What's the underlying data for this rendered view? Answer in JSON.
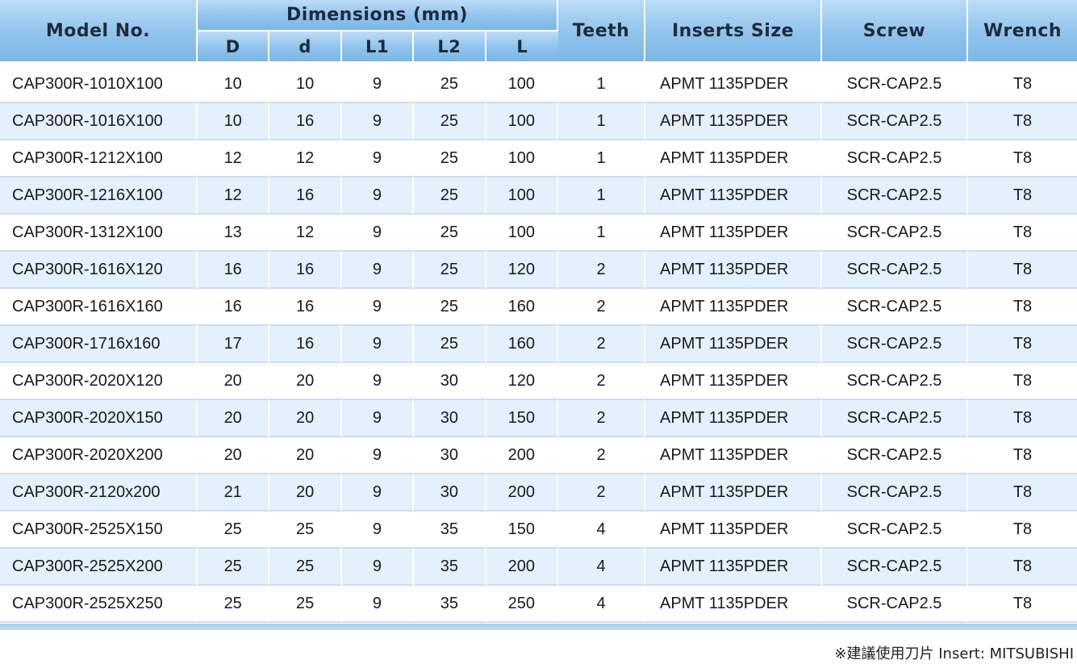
{
  "header": {
    "model": "Model No.",
    "dimensions": "Dimensions (mm)",
    "dims": [
      "D",
      "d",
      "L1",
      "L2",
      "L"
    ],
    "teeth": "Teeth",
    "inserts": "Inserts Size",
    "screw": "Screw",
    "wrench": "Wrench"
  },
  "rows": [
    {
      "model": "CAP300R-1010X100",
      "D": "10",
      "d": "10",
      "L1": "9",
      "L2": "25",
      "L": "100",
      "teeth": "1",
      "insert": "APMT 1135PDER",
      "screw": "SCR-CAP2.5",
      "wrench": "T8"
    },
    {
      "model": "CAP300R-1016X100",
      "D": "10",
      "d": "16",
      "L1": "9",
      "L2": "25",
      "L": "100",
      "teeth": "1",
      "insert": "APMT 1135PDER",
      "screw": "SCR-CAP2.5",
      "wrench": "T8"
    },
    {
      "model": "CAP300R-1212X100",
      "D": "12",
      "d": "12",
      "L1": "9",
      "L2": "25",
      "L": "100",
      "teeth": "1",
      "insert": "APMT 1135PDER",
      "screw": "SCR-CAP2.5",
      "wrench": "T8"
    },
    {
      "model": "CAP300R-1216X100",
      "D": "12",
      "d": "16",
      "L1": "9",
      "L2": "25",
      "L": "100",
      "teeth": "1",
      "insert": "APMT 1135PDER",
      "screw": "SCR-CAP2.5",
      "wrench": "T8"
    },
    {
      "model": "CAP300R-1312X100",
      "D": "13",
      "d": "12",
      "L1": "9",
      "L2": "25",
      "L": "100",
      "teeth": "1",
      "insert": "APMT 1135PDER",
      "screw": "SCR-CAP2.5",
      "wrench": "T8"
    },
    {
      "model": "CAP300R-1616X120",
      "D": "16",
      "d": "16",
      "L1": "9",
      "L2": "25",
      "L": "120",
      "teeth": "2",
      "insert": "APMT 1135PDER",
      "screw": "SCR-CAP2.5",
      "wrench": "T8"
    },
    {
      "model": "CAP300R-1616X160",
      "D": "16",
      "d": "16",
      "L1": "9",
      "L2": "25",
      "L": "160",
      "teeth": "2",
      "insert": "APMT 1135PDER",
      "screw": "SCR-CAP2.5",
      "wrench": "T8"
    },
    {
      "model": "CAP300R-1716x160",
      "D": "17",
      "d": "16",
      "L1": "9",
      "L2": "25",
      "L": "160",
      "teeth": "2",
      "insert": "APMT 1135PDER",
      "screw": "SCR-CAP2.5",
      "wrench": "T8"
    },
    {
      "model": "CAP300R-2020X120",
      "D": "20",
      "d": "20",
      "L1": "9",
      "L2": "30",
      "L": "120",
      "teeth": "2",
      "insert": "APMT 1135PDER",
      "screw": "SCR-CAP2.5",
      "wrench": "T8"
    },
    {
      "model": "CAP300R-2020X150",
      "D": "20",
      "d": "20",
      "L1": "9",
      "L2": "30",
      "L": "150",
      "teeth": "2",
      "insert": "APMT 1135PDER",
      "screw": "SCR-CAP2.5",
      "wrench": "T8"
    },
    {
      "model": "CAP300R-2020X200",
      "D": "20",
      "d": "20",
      "L1": "9",
      "L2": "30",
      "L": "200",
      "teeth": "2",
      "insert": "APMT 1135PDER",
      "screw": "SCR-CAP2.5",
      "wrench": "T8"
    },
    {
      "model": "CAP300R-2120x200",
      "D": "21",
      "d": "20",
      "L1": "9",
      "L2": "30",
      "L": "200",
      "teeth": "2",
      "insert": "APMT 1135PDER",
      "screw": "SCR-CAP2.5",
      "wrench": "T8"
    },
    {
      "model": "CAP300R-2525X150",
      "D": "25",
      "d": "25",
      "L1": "9",
      "L2": "35",
      "L": "150",
      "teeth": "4",
      "insert": "APMT 1135PDER",
      "screw": "SCR-CAP2.5",
      "wrench": "T8"
    },
    {
      "model": "CAP300R-2525X200",
      "D": "25",
      "d": "25",
      "L1": "9",
      "L2": "35",
      "L": "200",
      "teeth": "4",
      "insert": "APMT 1135PDER",
      "screw": "SCR-CAP2.5",
      "wrench": "T8"
    },
    {
      "model": "CAP300R-2525X250",
      "D": "25",
      "d": "25",
      "L1": "9",
      "L2": "35",
      "L": "250",
      "teeth": "4",
      "insert": "APMT 1135PDER",
      "screw": "SCR-CAP2.5",
      "wrench": "T8"
    }
  ],
  "footnote": "※建議使用刀片 Insert: MITSUBISHI",
  "colors": {
    "header": "#8fc3ec",
    "row_alt": "#e4f0fb",
    "bottom_rule": "#a8cdee"
  }
}
